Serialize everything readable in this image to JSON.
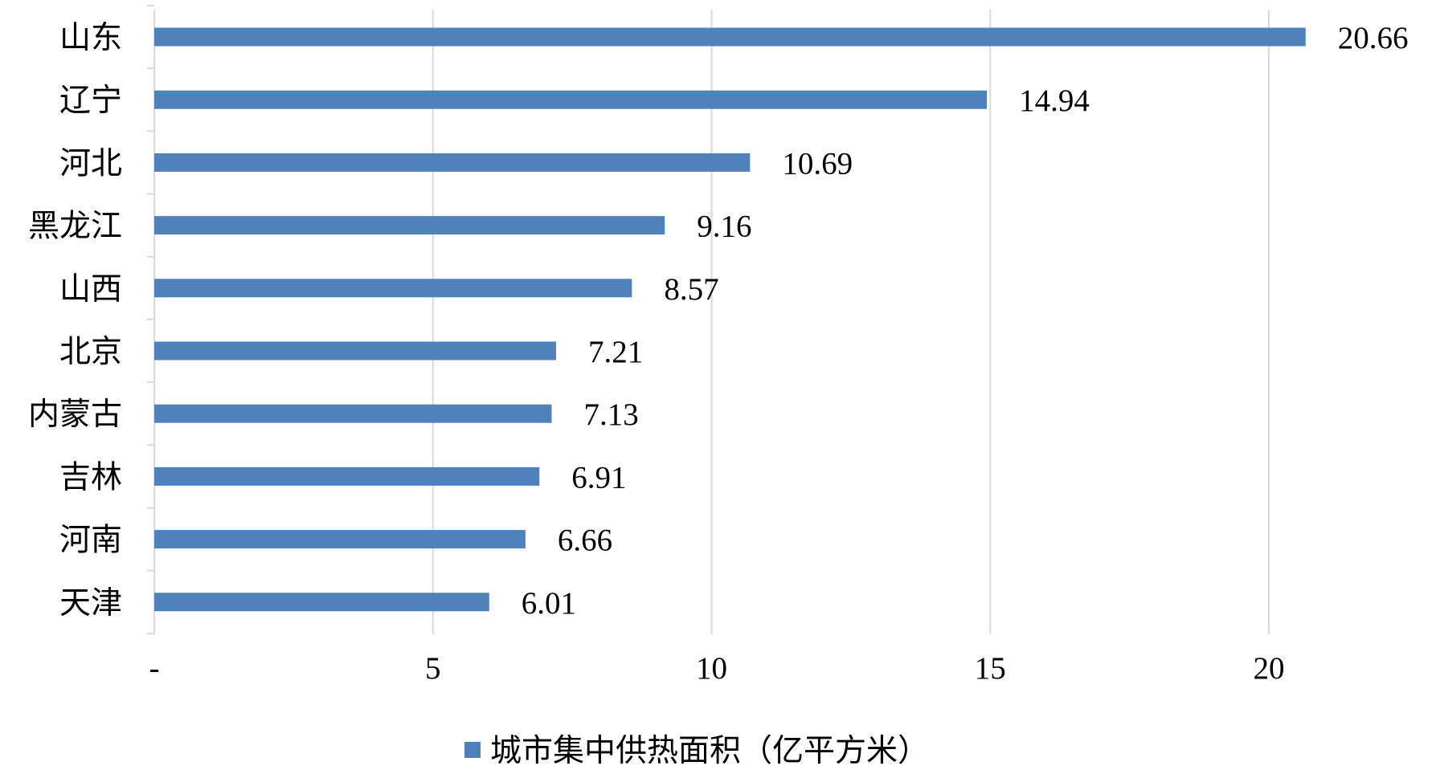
{
  "chart_data": {
    "type": "bar",
    "orientation": "horizontal",
    "categories": [
      "山东",
      "辽宁",
      "河北",
      "黑龙江",
      "山西",
      "北京",
      "内蒙古",
      "吉林",
      "河南",
      "天津"
    ],
    "series": [
      {
        "name": "城市集中供热面积（亿平方米）",
        "values": [
          20.66,
          14.94,
          10.69,
          9.16,
          8.57,
          7.21,
          7.13,
          6.91,
          6.66,
          6.01
        ],
        "labels": [
          "20.66",
          "14.94",
          "10.69",
          "9.16",
          "8.57",
          "7.21",
          "7.13",
          "6.91",
          "6.66",
          "6.01"
        ]
      }
    ],
    "xlim": [
      0,
      22.5
    ],
    "xticks": [
      {
        "value": 0,
        "label": "-"
      },
      {
        "value": 5,
        "label": "5"
      },
      {
        "value": 10,
        "label": "10"
      },
      {
        "value": 15,
        "label": "15"
      },
      {
        "value": 20,
        "label": "20"
      }
    ],
    "grid": "vertical",
    "legend_position": "bottom",
    "colors": {
      "bar": "#4F81BD",
      "grid": "#D9D9D9",
      "text": "#000000"
    }
  }
}
